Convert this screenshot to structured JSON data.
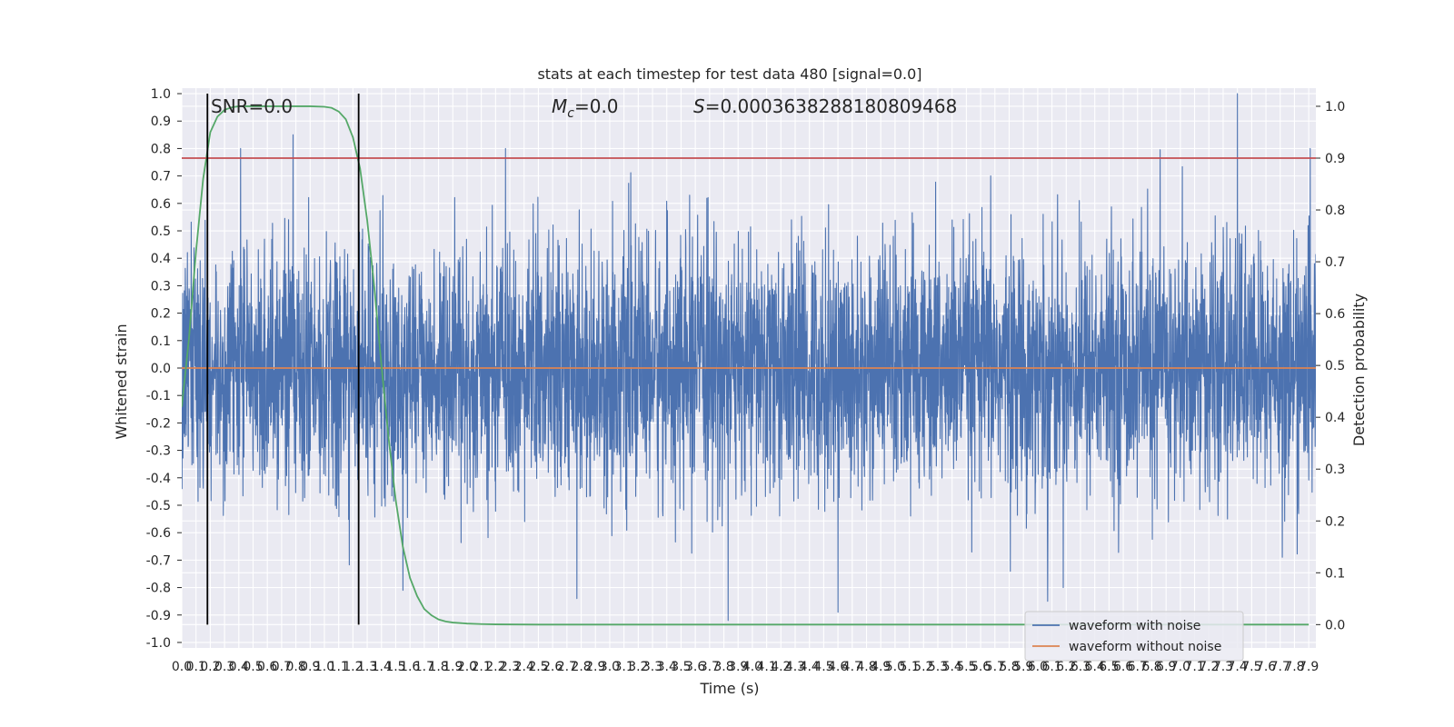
{
  "chart_data": {
    "type": "line",
    "title": "stats at each timestep for test data 480 [signal=0.0]",
    "xlabel": "Time (s)",
    "ylabel_left": "Whitened strain",
    "ylabel_right": "Detection probability",
    "xlim": [
      0.0,
      7.95
    ],
    "ylim_left": [
      -1.02,
      1.02
    ],
    "ylim_right": [
      -0.045,
      1.035
    ],
    "x_ticks": [
      "0.0",
      "0.1",
      "0.2",
      "0.3",
      "0.4",
      "0.5",
      "0.6",
      "0.7",
      "0.8",
      "0.9",
      "1.0",
      "1.1",
      "1.2",
      "1.3",
      "1.4",
      "1.5",
      "1.6",
      "1.7",
      "1.8",
      "1.9",
      "2.0",
      "2.1",
      "2.2",
      "2.3",
      "2.4",
      "2.5",
      "2.6",
      "2.7",
      "2.8",
      "2.9",
      "3.0",
      "3.1",
      "3.2",
      "3.3",
      "3.4",
      "3.5",
      "3.6",
      "3.7",
      "3.8",
      "3.9",
      "4.0",
      "4.1",
      "4.2",
      "4.3",
      "4.4",
      "4.5",
      "4.6",
      "4.7",
      "4.8",
      "4.9",
      "5.0",
      "5.1",
      "5.2",
      "5.3",
      "5.4",
      "5.5",
      "5.6",
      "5.7",
      "5.8",
      "5.9",
      "6.0",
      "6.1",
      "6.2",
      "6.3",
      "6.4",
      "6.5",
      "6.6",
      "6.7",
      "6.8",
      "6.9",
      "7.0",
      "7.1",
      "7.2",
      "7.3",
      "7.4",
      "7.5",
      "7.6",
      "7.7",
      "7.8",
      "7.9"
    ],
    "y_ticks_left": [
      "-1.0",
      "-0.9",
      "-0.8",
      "-0.7",
      "-0.6",
      "-0.5",
      "-0.4",
      "-0.3",
      "-0.2",
      "-0.1",
      "0.0",
      "0.1",
      "0.2",
      "0.3",
      "0.4",
      "0.5",
      "0.6",
      "0.7",
      "0.8",
      "0.9",
      "1.0"
    ],
    "y_ticks_right": [
      "0.0",
      "0.1",
      "0.2",
      "0.3",
      "0.4",
      "0.5",
      "0.6",
      "0.7",
      "0.8",
      "0.9",
      "1.0"
    ],
    "annotations": {
      "snr": "SNR=0.0",
      "mc_label": "M",
      "mc_sub": "c",
      "mc_value": "=0.0",
      "s_label": "S",
      "s_value": "=0.0003638288180809468"
    },
    "series": [
      {
        "name": "waveform with noise",
        "color": "#4c72b0",
        "axis": "left",
        "kind": "noise",
        "envelope": 0.36,
        "x_range": [
          0.0,
          7.95
        ],
        "peaks": [
          [
            0.78,
            0.85
          ],
          [
            7.4,
            1.0
          ],
          [
            3.83,
            -0.92
          ],
          [
            4.6,
            -0.89
          ],
          [
            6.07,
            -0.85
          ],
          [
            2.77,
            -0.84
          ],
          [
            1.55,
            -0.81
          ]
        ]
      },
      {
        "name": "waveform without noise",
        "color": "#dd8452",
        "axis": "left",
        "x": [
          0.0,
          7.95
        ],
        "y": [
          0.0,
          0.0
        ]
      },
      {
        "color": "#55a868",
        "axis": "right",
        "x": [
          0.0,
          0.05,
          0.1,
          0.15,
          0.2,
          0.25,
          0.3,
          0.35,
          0.4,
          0.5,
          0.6,
          0.7,
          0.8,
          0.9,
          1.0,
          1.05,
          1.1,
          1.15,
          1.2,
          1.25,
          1.3,
          1.35,
          1.4,
          1.45,
          1.5,
          1.55,
          1.6,
          1.65,
          1.7,
          1.75,
          1.8,
          1.85,
          1.9,
          2.0,
          2.1,
          2.2,
          2.5,
          3.0,
          4.0,
          5.0,
          6.0,
          7.0,
          7.9
        ],
        "y": [
          0.42,
          0.55,
          0.72,
          0.86,
          0.95,
          0.98,
          0.993,
          0.998,
          1.0,
          1.0,
          1.0,
          1.0,
          1.0,
          1.0,
          0.999,
          0.997,
          0.99,
          0.975,
          0.94,
          0.88,
          0.78,
          0.65,
          0.5,
          0.36,
          0.24,
          0.15,
          0.09,
          0.055,
          0.03,
          0.018,
          0.01,
          0.006,
          0.004,
          0.002,
          0.001,
          0.0005,
          0.0,
          0.0,
          0.0,
          0.0,
          0.0,
          0.0,
          0.0
        ]
      },
      {
        "color": "#c44e52",
        "axis": "right",
        "x": [
          0.0,
          7.95
        ],
        "y": [
          0.9,
          0.9
        ]
      }
    ],
    "vlines": [
      {
        "x": 0.18,
        "color": "#000000"
      },
      {
        "x": 1.24,
        "color": "#000000"
      }
    ],
    "legend": "lower-right",
    "grid": true,
    "background": "#eaeaf2"
  }
}
